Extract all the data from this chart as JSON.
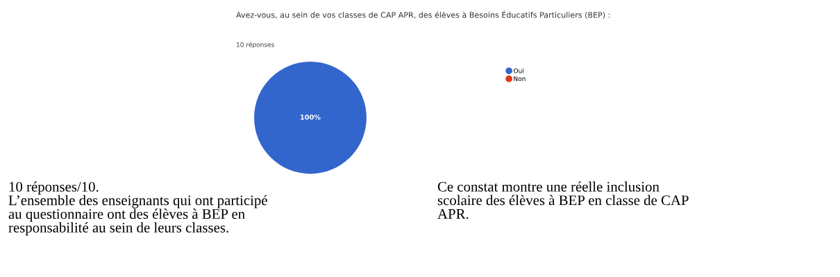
{
  "chart_data": {
    "type": "pie",
    "title": "Avez-vous, au sein de vos classes de CAP APR, des élèves à Besoins Éducatifs Particuliers (BEP) :",
    "subtitle": "10 réponses",
    "categories": [
      "Oui",
      "Non"
    ],
    "values": [
      100,
      0
    ],
    "colors": [
      "#3366cc",
      "#dc3912"
    ],
    "value_labels": [
      "100%",
      null
    ],
    "legend": "right",
    "annotations": [
      "10 réponses/10.\nL’ensemble des enseignants qui ont participé\nau questionnaire ont des élèves à BEP en\nresponsabilité au sein de leurs classes.",
      "Ce constat montre une réelle inclusion\nscolaire des élèves à BEP en classe de CAP\nAPR."
    ]
  }
}
